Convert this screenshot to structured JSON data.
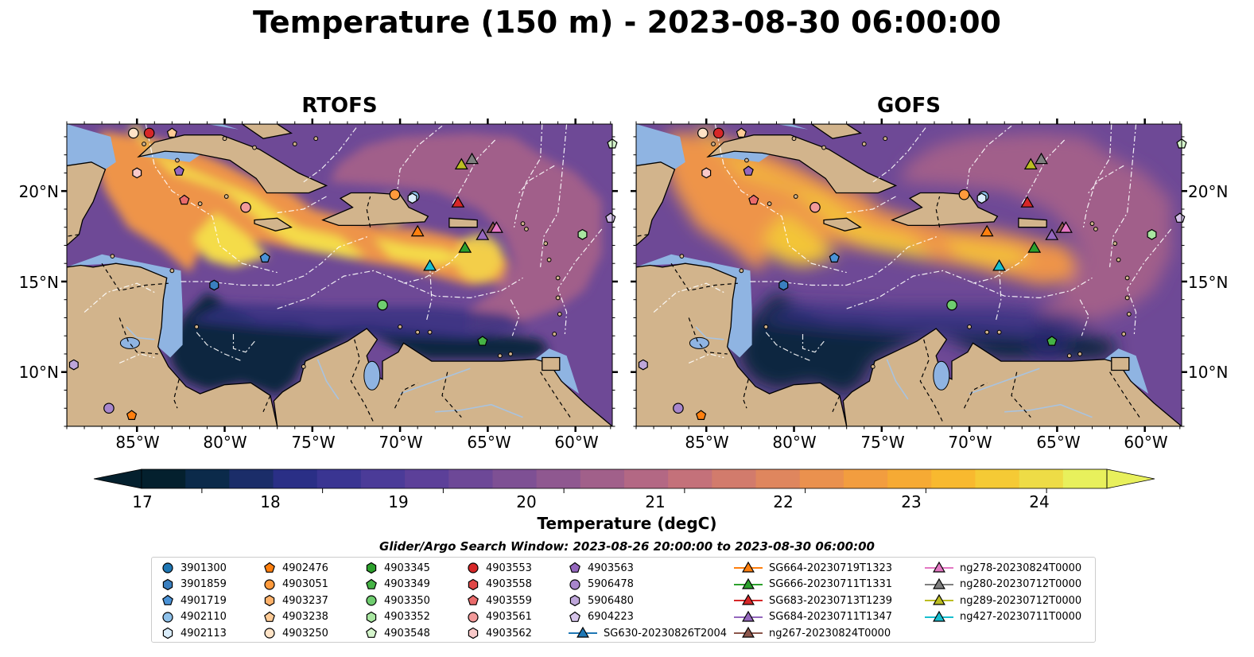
{
  "title": "Temperature (150 m) - 2023-08-30 06:00:00",
  "panels": [
    {
      "title": "RTOFS"
    },
    {
      "title": "GOFS"
    }
  ],
  "lat_labels": [
    "20°N",
    "15°N",
    "10°N"
  ],
  "lon_labels": [
    "85°W",
    "80°W",
    "75°W",
    "70°W",
    "65°W",
    "60°W"
  ],
  "colorbar": {
    "label": "Temperature (degC)",
    "ticks": [
      "17",
      "18",
      "19",
      "20",
      "21",
      "22",
      "23",
      "24"
    ],
    "min": 16.5,
    "max": 24.5,
    "colors": [
      "#04202e",
      "#0b2a4a",
      "#1b2d69",
      "#2a2f86",
      "#3a3592",
      "#4b3b98",
      "#5c4099",
      "#6d4897",
      "#7e5094",
      "#8f5890",
      "#a1608a",
      "#b36884",
      "#c4717a",
      "#d27b6c",
      "#df865e",
      "#ea914e",
      "#f29d3f",
      "#f6aa34",
      "#f8b92f",
      "#f5ca35",
      "#eedc46",
      "#e8f05c"
    ],
    "under_color": "#04202e",
    "over_color": "#e8f05c"
  },
  "search_window": "Glider/Argo Search Window: 2023-08-26 20:00:00 to 2023-08-30 06:00:00",
  "map_extent": {
    "lon_min": -89.0,
    "lon_max": -57.9,
    "lat_min": 7.0,
    "lat_max": 23.7
  },
  "legend": [
    {
      "label": "3901300",
      "marker": "circle",
      "color": "#1f77b4"
    },
    {
      "label": "3901859",
      "marker": "hexagon",
      "color": "#3a7fbf"
    },
    {
      "label": "4901719",
      "marker": "pentagon",
      "color": "#4a92d6"
    },
    {
      "label": "4902110",
      "marker": "circle",
      "color": "#8ec1ea"
    },
    {
      "label": "4902113",
      "marker": "hexagon",
      "color": "#d9ecfa"
    },
    {
      "label": "4902476",
      "marker": "pentagon",
      "color": "#ff7f0e"
    },
    {
      "label": "4903051",
      "marker": "circle",
      "color": "#ff9a3c"
    },
    {
      "label": "4903237",
      "marker": "hexagon",
      "color": "#ffb26b"
    },
    {
      "label": "4903238",
      "marker": "pentagon",
      "color": "#ffcb96"
    },
    {
      "label": "4903250",
      "marker": "circle",
      "color": "#ffe3c6"
    },
    {
      "label": "4903345",
      "marker": "hexagon",
      "color": "#2ca02c"
    },
    {
      "label": "4903349",
      "marker": "pentagon",
      "color": "#45b345"
    },
    {
      "label": "4903350",
      "marker": "circle",
      "color": "#6fcd6f"
    },
    {
      "label": "4903352",
      "marker": "hexagon",
      "color": "#a8e6a0"
    },
    {
      "label": "4903548",
      "marker": "pentagon",
      "color": "#d5f5cc"
    },
    {
      "label": "4903553",
      "marker": "circle",
      "color": "#d62728"
    },
    {
      "label": "4903558",
      "marker": "hexagon",
      "color": "#e04848"
    },
    {
      "label": "4903559",
      "marker": "pentagon",
      "color": "#ea6b6b"
    },
    {
      "label": "4903561",
      "marker": "circle",
      "color": "#f29a9a"
    },
    {
      "label": "4903562",
      "marker": "hexagon",
      "color": "#f9c9c9"
    },
    {
      "label": "4903563",
      "marker": "pentagon",
      "color": "#9467bd"
    },
    {
      "label": "5906478",
      "marker": "circle",
      "color": "#a886cc"
    },
    {
      "label": "5906480",
      "marker": "hexagon",
      "color": "#bea6da"
    },
    {
      "label": "6904223",
      "marker": "pentagon",
      "color": "#d6c4ea"
    },
    {
      "label": "SG630-20230826T2004",
      "marker": "triangle-line",
      "color": "#1f77b4"
    },
    {
      "label": "SG664-20230719T1323",
      "marker": "triangle-line",
      "color": "#ff7f0e"
    },
    {
      "label": "SG666-20230711T1331",
      "marker": "triangle-line",
      "color": "#2ca02c"
    },
    {
      "label": "SG683-20230713T1239",
      "marker": "triangle-line",
      "color": "#d62728"
    },
    {
      "label": "SG684-20230711T1347",
      "marker": "triangle-line",
      "color": "#9467bd"
    },
    {
      "label": "ng267-20230824T0000",
      "marker": "triangle-line",
      "color": "#8c564b"
    },
    {
      "label": "ng278-20230824T0000",
      "marker": "triangle-line",
      "color": "#e377c2"
    },
    {
      "label": "ng280-20230712T0000",
      "marker": "triangle-line",
      "color": "#7f7f7f"
    },
    {
      "label": "ng289-20230712T0000",
      "marker": "triangle-line",
      "color": "#bcbd22"
    },
    {
      "label": "ng427-20230711T0000",
      "marker": "triangle-line",
      "color": "#17becf"
    }
  ],
  "markers": [
    {
      "id": "3901300",
      "marker": "circle",
      "color": "#1f77b4",
      "lon": -69.0,
      "lat": 16.0,
      "hidden": true
    },
    {
      "id": "3901859",
      "marker": "hexagon",
      "color": "#3a7fbf",
      "lon": -80.6,
      "lat": 14.8
    },
    {
      "id": "4901719",
      "marker": "pentagon",
      "color": "#4a92d6",
      "lon": -77.7,
      "lat": 16.3
    },
    {
      "id": "4902110",
      "marker": "circle",
      "color": "#8ec1ea",
      "lon": -69.2,
      "lat": 19.7
    },
    {
      "id": "4902113",
      "marker": "hexagon",
      "color": "#d9ecfa",
      "lon": -69.3,
      "lat": 19.6
    },
    {
      "id": "4902476",
      "marker": "pentagon",
      "color": "#ff7f0e",
      "lon": -85.3,
      "lat": 7.6
    },
    {
      "id": "4903051",
      "marker": "circle",
      "color": "#ff9a3c",
      "lon": -70.3,
      "lat": 19.8
    },
    {
      "id": "4903237",
      "marker": "hexagon",
      "color": "#ffb26b",
      "lon": -73.0,
      "lat": 19.0,
      "hidden": true
    },
    {
      "id": "4903238",
      "marker": "pentagon",
      "color": "#ffcb96",
      "lon": -83.0,
      "lat": 23.2
    },
    {
      "id": "4903250",
      "marker": "circle",
      "color": "#ffe3c6",
      "lon": -85.2,
      "lat": 23.2
    },
    {
      "id": "4903345",
      "marker": "hexagon",
      "color": "#2ca02c",
      "lon": -65.0,
      "lat": 13.0,
      "hidden": true
    },
    {
      "id": "4903349",
      "marker": "pentagon",
      "color": "#45b345",
      "lon": -65.3,
      "lat": 11.7
    },
    {
      "id": "4903350",
      "marker": "circle",
      "color": "#6fcd6f",
      "lon": -71.0,
      "lat": 13.7
    },
    {
      "id": "4903352",
      "marker": "hexagon",
      "color": "#a8e6a0",
      "lon": -59.6,
      "lat": 17.6
    },
    {
      "id": "4903548",
      "marker": "pentagon",
      "color": "#d5f5cc",
      "lon": -57.9,
      "lat": 22.6
    },
    {
      "id": "4903553",
      "marker": "circle",
      "color": "#d62728",
      "lon": -84.3,
      "lat": 23.2
    },
    {
      "id": "4903558",
      "marker": "hexagon",
      "color": "#e04848",
      "lon": -70.0,
      "lat": 21.0,
      "hidden": true
    },
    {
      "id": "4903559",
      "marker": "pentagon",
      "color": "#ea6b6b",
      "lon": -82.3,
      "lat": 19.5
    },
    {
      "id": "4903561",
      "marker": "circle",
      "color": "#f29a9a",
      "lon": -78.8,
      "lat": 19.1
    },
    {
      "id": "4903562",
      "marker": "hexagon",
      "color": "#f9c9c9",
      "lon": -85.0,
      "lat": 21.0
    },
    {
      "id": "4903563",
      "marker": "pentagon",
      "color": "#9467bd",
      "lon": -82.6,
      "lat": 21.1
    },
    {
      "id": "5906478",
      "marker": "circle",
      "color": "#a886cc",
      "lon": -86.6,
      "lat": 8.0
    },
    {
      "id": "5906480",
      "marker": "hexagon",
      "color": "#bea6da",
      "lon": -88.6,
      "lat": 10.4
    },
    {
      "id": "6904223",
      "marker": "pentagon",
      "color": "#d6c4ea",
      "lon": -58.0,
      "lat": 18.5
    },
    {
      "id": "SG630-20230826T2004",
      "marker": "triangle",
      "color": "#1f77b4",
      "lon": -60.0,
      "lat": 17.0,
      "hidden": true
    },
    {
      "id": "SG664-20230719T1323",
      "marker": "triangle",
      "color": "#ff7f0e",
      "lon": -69.0,
      "lat": 17.8
    },
    {
      "id": "SG666-20230711T1331",
      "marker": "triangle",
      "color": "#2ca02c",
      "lon": -66.3,
      "lat": 16.9
    },
    {
      "id": "SG683-20230713T1239",
      "marker": "triangle",
      "color": "#d62728",
      "lon": -66.7,
      "lat": 19.4
    },
    {
      "id": "SG684-20230711T1347",
      "marker": "triangle",
      "color": "#9467bd",
      "lon": -65.3,
      "lat": 17.6
    },
    {
      "id": "ng267-20230824T0000",
      "marker": "triangle",
      "color": "#8c564b",
      "lon": -64.7,
      "lat": 18.0
    },
    {
      "id": "ng278-20230824T0000",
      "marker": "triangle",
      "color": "#e377c2",
      "lon": -64.5,
      "lat": 18.0
    },
    {
      "id": "ng280-20230712T0000",
      "marker": "triangle",
      "color": "#7f7f7f",
      "lon": -65.9,
      "lat": 21.8
    },
    {
      "id": "ng289-20230712T0000",
      "marker": "triangle",
      "color": "#bcbd22",
      "lon": -66.5,
      "lat": 21.5
    },
    {
      "id": "ng427-20230711T0000",
      "marker": "triangle",
      "color": "#17becf",
      "lon": -68.3,
      "lat": 15.9
    },
    {
      "id": "SG666-cont",
      "marker": "triangle",
      "color": "#2ca02c",
      "lon": -66.9,
      "lat": 17.4,
      "hidden": true
    }
  ],
  "palette": {
    "ocean_shallow": "#8fb4e2",
    "land": "#d2b48c",
    "river": "#a9c3df",
    "eez": "#ffffff"
  }
}
